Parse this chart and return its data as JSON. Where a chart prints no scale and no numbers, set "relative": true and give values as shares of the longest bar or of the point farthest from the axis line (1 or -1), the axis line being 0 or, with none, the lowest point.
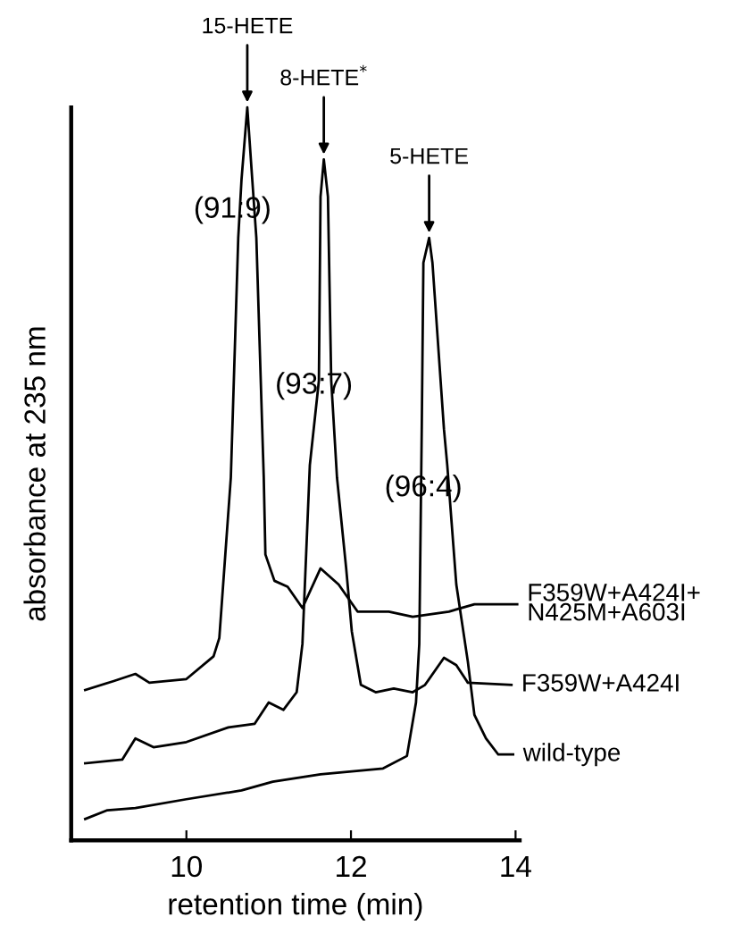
{
  "chart_data": {
    "type": "line",
    "xlabel": "retention time (min)",
    "ylabel": "absorbance at 235 nm",
    "relative": true,
    "xlim": [
      8.6,
      14.05
    ],
    "xticks": [
      10,
      12,
      14
    ],
    "grid": false,
    "legend": false,
    "marker": "none",
    "line_style": "solid",
    "series": [
      {
        "name": "F359W+A424I+\nN425M+A603I",
        "color": "#000000",
        "x": [
          8.77,
          9.11,
          9.38,
          9.55,
          10.0,
          10.33,
          10.4,
          10.54,
          10.63,
          10.67,
          10.74,
          10.8,
          10.85,
          10.94,
          10.96,
          11.07,
          11.23,
          11.41,
          11.63,
          11.85,
          12.08,
          12.46,
          12.75,
          13.19,
          13.5,
          14.02
        ],
        "values": [
          0.205,
          0.217,
          0.227,
          0.215,
          0.22,
          0.251,
          0.276,
          0.495,
          0.822,
          0.902,
          1.0,
          0.902,
          0.822,
          0.495,
          0.39,
          0.354,
          0.346,
          0.317,
          0.371,
          0.349,
          0.312,
          0.312,
          0.305,
          0.312,
          0.322,
          0.322
        ]
      },
      {
        "name": "F359W+A424I",
        "color": "#000000",
        "x": [
          8.77,
          9.22,
          9.38,
          9.6,
          10.0,
          10.51,
          10.83,
          11.0,
          11.18,
          11.34,
          11.41,
          11.5,
          11.61,
          11.63,
          11.67,
          11.72,
          11.76,
          11.83,
          11.94,
          12.01,
          12.12,
          12.3,
          12.52,
          12.75,
          12.9,
          13.13,
          13.28,
          13.42,
          13.95
        ],
        "values": [
          0.105,
          0.11,
          0.139,
          0.127,
          0.134,
          0.154,
          0.159,
          0.188,
          0.178,
          0.202,
          0.268,
          0.512,
          0.627,
          0.878,
          0.929,
          0.878,
          0.627,
          0.495,
          0.373,
          0.285,
          0.212,
          0.202,
          0.207,
          0.202,
          0.212,
          0.249,
          0.239,
          0.215,
          0.212
        ]
      },
      {
        "name": "wild-type",
        "color": "#000000",
        "x": [
          8.77,
          9.04,
          9.38,
          10.0,
          10.67,
          11.05,
          11.63,
          12.39,
          12.68,
          12.79,
          12.83,
          12.86,
          12.88,
          12.95,
          12.99,
          13.13,
          13.17,
          13.28,
          13.42,
          13.5,
          13.64,
          13.79,
          13.97
        ],
        "values": [
          0.029,
          0.041,
          0.044,
          0.056,
          0.068,
          0.08,
          0.09,
          0.098,
          0.115,
          0.188,
          0.268,
          0.561,
          0.788,
          0.822,
          0.788,
          0.561,
          0.512,
          0.349,
          0.244,
          0.171,
          0.139,
          0.117,
          0.117
        ]
      }
    ],
    "annotations": [
      {
        "text": "15-HETE",
        "x": 10.74,
        "y": 1.0
      },
      {
        "text": "8-HETE$^{*}$",
        "x": 11.67,
        "y": 0.929
      },
      {
        "text": "5-HETE",
        "x": 12.95,
        "y": 0.822
      },
      "(91:9)",
      "(93:7)",
      "(96:4)"
    ]
  }
}
